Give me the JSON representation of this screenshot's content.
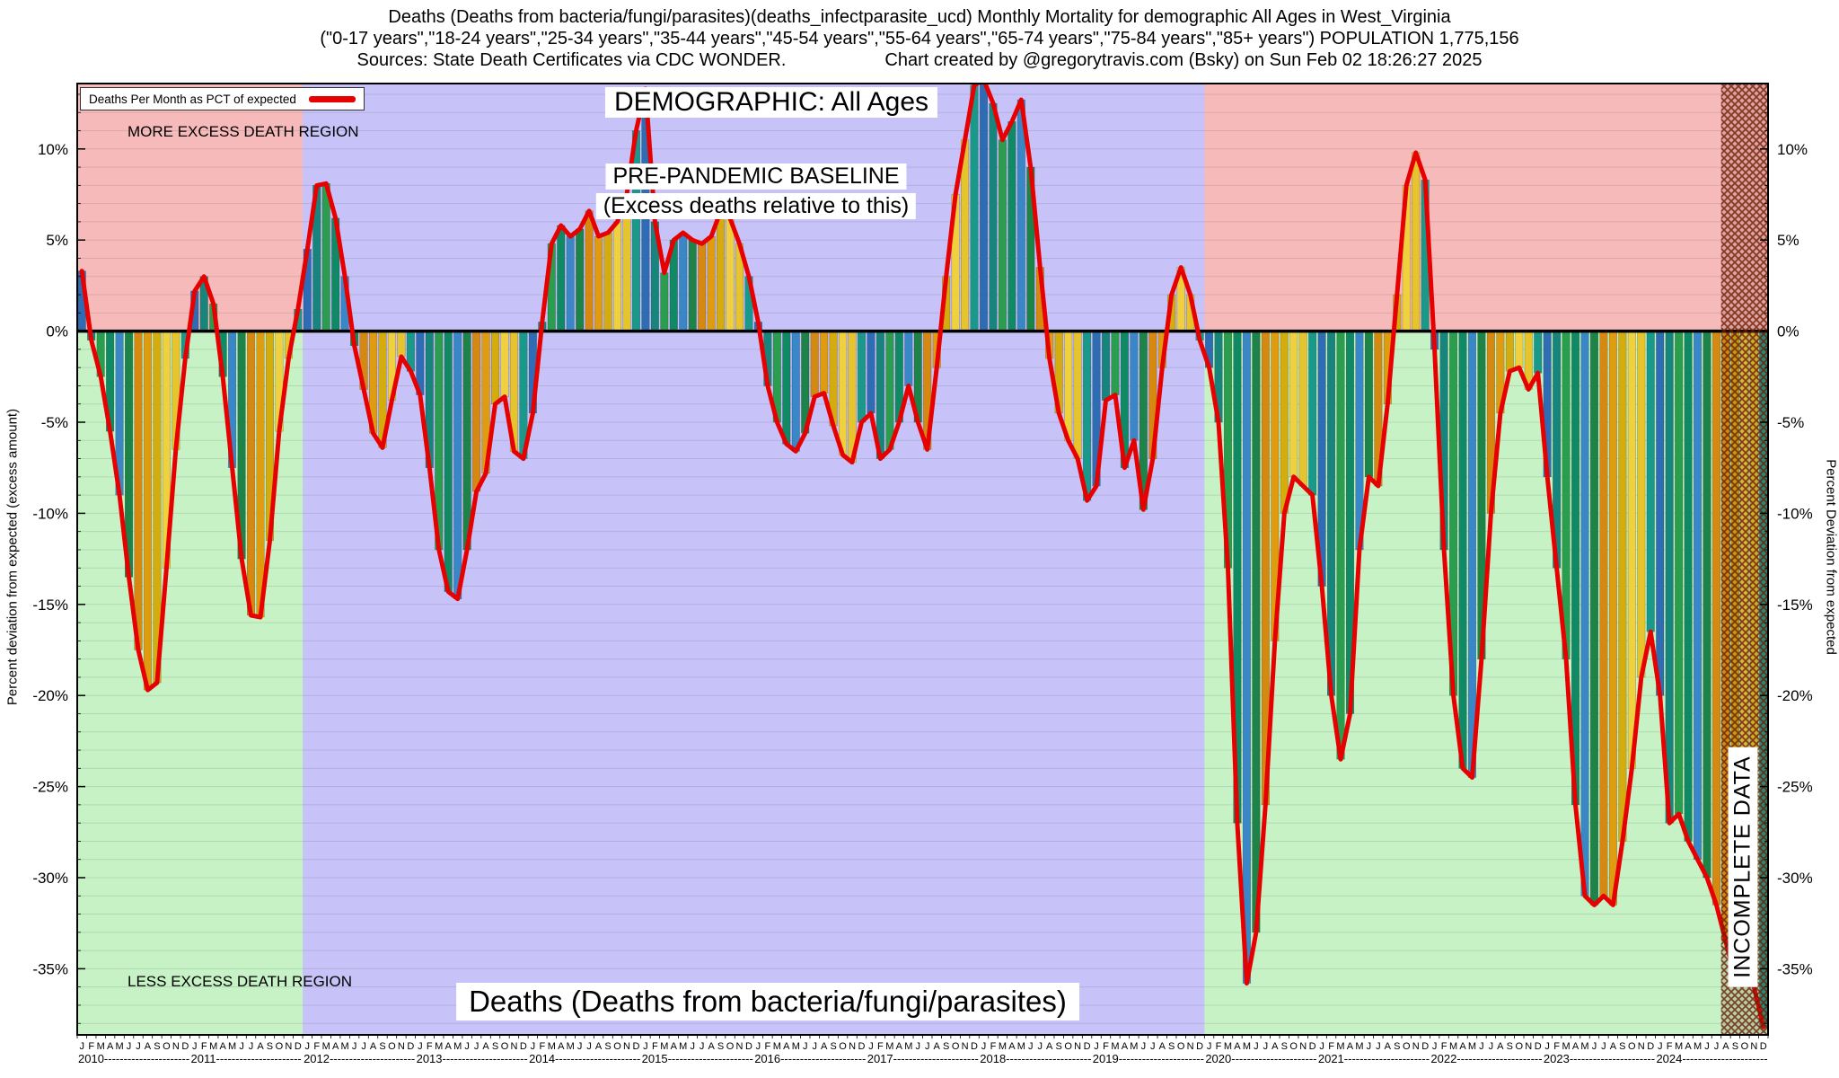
{
  "header": {
    "title_line1": "Deaths (Deaths from bacteria/fungi/parasites)(deaths_infectparasite_ucd) Monthly Mortality for demographic All Ages in West_Virginia",
    "title_line2": "(\"0-17 years\",\"18-24 years\",\"25-34 years\",\"35-44 years\",\"45-54 years\",\"55-64 years\",\"65-74 years\",\"75-84 years\",\"85+ years\") POPULATION 1,775,156",
    "title_line3_left": "Sources: State Death Certificates via CDC WONDER.",
    "title_line3_right": "Chart created by @gregorytravis.com (Bsky) on Sun Feb 02 18:26:27 2025"
  },
  "legend": {
    "label": "Deaths Per Month as PCT of expected",
    "line_color": "#e60000"
  },
  "annotations": {
    "more_excess": "MORE EXCESS DEATH REGION",
    "less_excess": "LESS EXCESS DEATH REGION",
    "demographic": "DEMOGRAPHIC: All Ages",
    "baseline_line1": "PRE-PANDEMIC BASELINE",
    "baseline_line2": "(Excess deaths relative to this)",
    "bottom_title": "Deaths (Deaths from bacteria/fungi/parasites)",
    "incomplete": "INCOMPLETE DATA"
  },
  "axes": {
    "left_label": "Percent deviation from expected (excess amount)",
    "right_label": "Percent Deviation from expected",
    "y_ticks": [
      "10%",
      "5%",
      "0%",
      "-5%",
      "-10%",
      "-15%",
      "-20%",
      "-25%",
      "-30%",
      "-35%"
    ],
    "y_tick_values": [
      10,
      5,
      0,
      -5,
      -10,
      -15,
      -20,
      -25,
      -30,
      -35
    ],
    "month_letters": "JFMAMJJASOND"
  },
  "chart_data": {
    "type": "bar",
    "title": "Deaths (Deaths from bacteria/fungi/parasites)",
    "ylabel": "Percent deviation from expected (excess amount)",
    "unit": "% deviation from expected",
    "ylim": [
      -38.7,
      13.6
    ],
    "grid": "horizontal, every 1%",
    "years": [
      2010,
      2011,
      2012,
      2013,
      2014,
      2015,
      2016,
      2017,
      2018,
      2019,
      2020,
      2021,
      2022,
      2023,
      2024
    ],
    "values_by_year": {
      "2010": [
        3.3,
        -0.5,
        -2.5,
        -5.5,
        -9.0,
        -13.5,
        -17.5,
        -19.7,
        -19.3,
        -13.0,
        -6.5,
        -1.5
      ],
      "2011": [
        2.2,
        3.0,
        1.5,
        -2.5,
        -7.5,
        -12.5,
        -15.6,
        -15.7,
        -11.5,
        -5.5,
        -1.5,
        1.2
      ],
      "2012": [
        4.5,
        8.0,
        8.1,
        6.2,
        3.0,
        -0.8,
        -3.2,
        -5.6,
        -6.4,
        -3.8,
        -1.4,
        -2.2
      ],
      "2013": [
        -3.5,
        -7.5,
        -12.0,
        -14.3,
        -14.7,
        -12.0,
        -8.8,
        -7.8,
        -4.0,
        -3.6,
        -6.6,
        -7.0
      ],
      "2014": [
        -4.5,
        0.5,
        4.8,
        5.8,
        5.2,
        5.6,
        6.6,
        5.2,
        5.4,
        6.0,
        7.5,
        11.0
      ],
      "2015": [
        13.3,
        6.0,
        3.2,
        5.0,
        5.4,
        5.0,
        4.8,
        5.2,
        6.6,
        6.2,
        4.8,
        3.0
      ],
      "2016": [
        0.5,
        -3.0,
        -5.0,
        -6.2,
        -6.6,
        -5.6,
        -3.6,
        -3.4,
        -5.2,
        -6.8,
        -7.2,
        -5.0
      ],
      "2017": [
        -4.5,
        -7.0,
        -6.5,
        -5.0,
        -3.0,
        -5.0,
        -6.5,
        -2.0,
        3.0,
        7.5,
        10.5,
        13.5
      ],
      "2018": [
        13.8,
        12.5,
        10.5,
        11.5,
        12.7,
        9.0,
        3.5,
        -1.5,
        -4.5,
        -6.0,
        -7.0,
        -9.3
      ],
      "2019": [
        -8.5,
        -3.8,
        -3.5,
        -7.5,
        -6.0,
        -9.8,
        -7.0,
        -2.0,
        2.0,
        3.5,
        2.0,
        -0.5
      ],
      "2020": [
        -2.0,
        -5.0,
        -13.0,
        -27.0,
        -35.8,
        -33.0,
        -26.0,
        -17.0,
        -10.0,
        -8.0,
        -8.5,
        -9.0
      ],
      "2021": [
        -14.0,
        -20.0,
        -23.5,
        -21.0,
        -12.0,
        -8.0,
        -8.5,
        -4.0,
        2.0,
        8.0,
        9.8,
        8.3
      ],
      "2022": [
        -1.0,
        -12.0,
        -20.0,
        -24.0,
        -24.5,
        -18.0,
        -10.0,
        -4.5,
        -2.2,
        -2.0,
        -3.2,
        -2.3
      ],
      "2023": [
        -8.0,
        -13.0,
        -18.0,
        -26.0,
        -31.0,
        -31.5,
        -31.0,
        -31.5,
        -28.0,
        -24.0,
        -19.0,
        -16.5
      ],
      "2024": [
        -20.0,
        -27.0,
        -26.5,
        -28.0,
        -29.0,
        -30.0,
        -31.5,
        -33.5,
        -35.5,
        -34.8,
        -36.0,
        -38.2
      ]
    },
    "line_overlay": {
      "label": "Deaths Per Month as PCT of expected",
      "color": "#e60000"
    },
    "regions": {
      "baseline": {
        "label": "PRE-PANDEMIC BASELINE",
        "from": "2012-01",
        "to": "2019-12",
        "color": "#c7c3f9"
      },
      "more_excess": {
        "label": "MORE EXCESS DEATH REGION",
        "where": "above 0%",
        "color": "#f7baba"
      },
      "less_excess": {
        "label": "LESS EXCESS DEATH REGION",
        "where": "below 0%",
        "color": "#c6f2c6"
      },
      "incomplete": {
        "label": "INCOMPLETE DATA",
        "from": "2024-08",
        "to": "2024-12"
      }
    },
    "bar_month_colors": [
      "#2e6db4",
      "#17857b",
      "#2a9d4e",
      "#0f8a65",
      "#3a87c8",
      "#1d8348",
      "#d68910",
      "#e09c10",
      "#d4ac0d",
      "#efd03f",
      "#e6c42e",
      "#19998a"
    ]
  }
}
